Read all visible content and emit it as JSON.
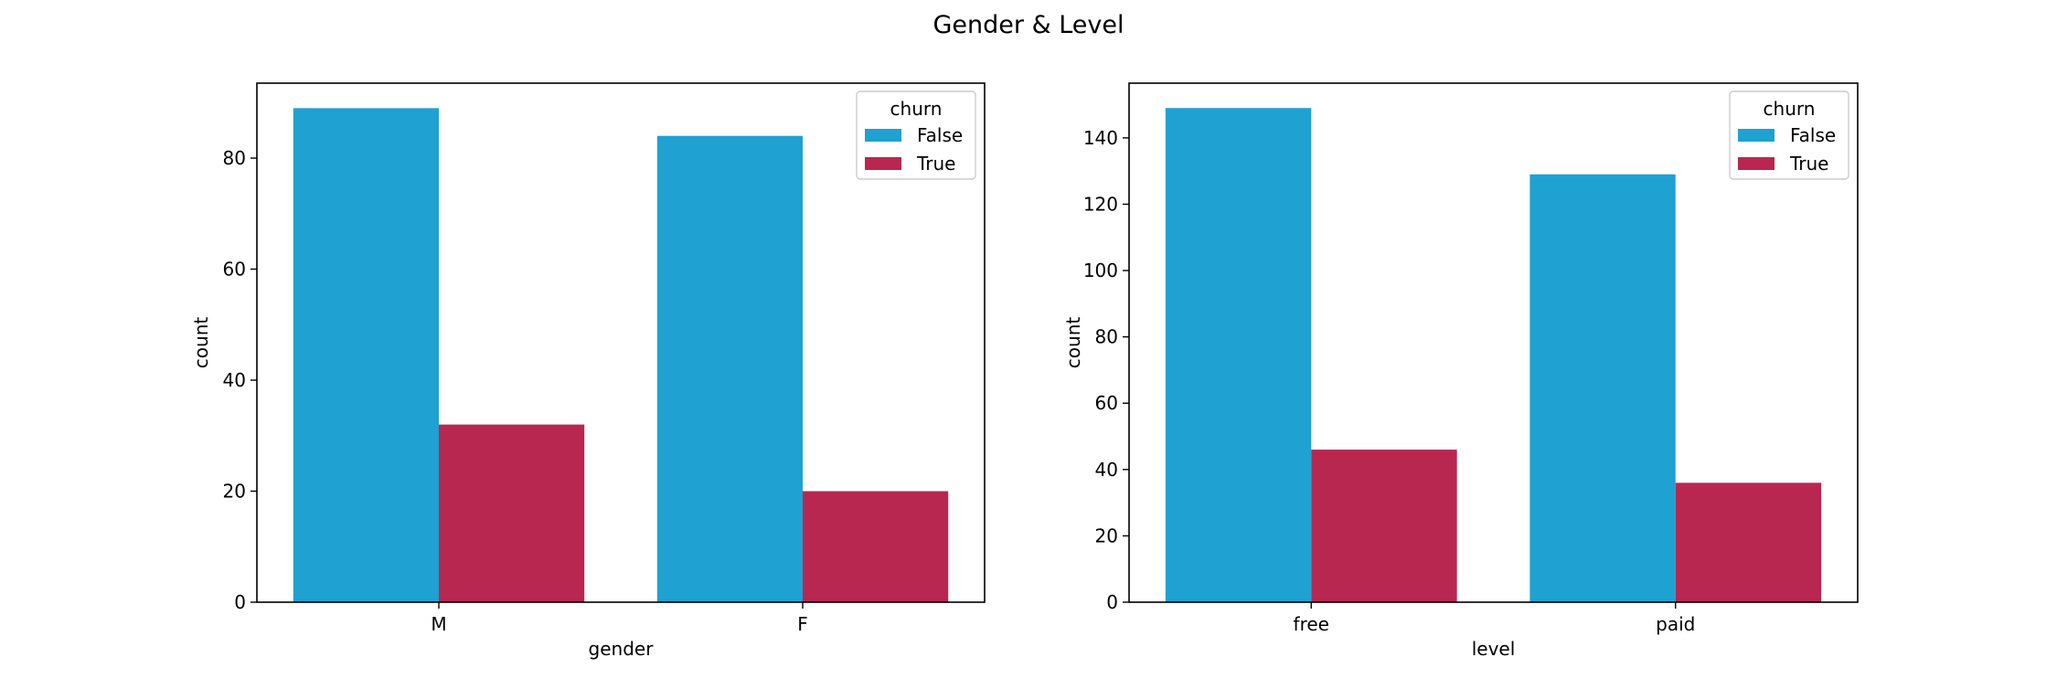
{
  "figure_title": "Gender & Level",
  "colors": {
    "False": "#1fa1d2",
    "True": "#b82750"
  },
  "chart_data": [
    {
      "type": "bar",
      "categories": [
        "M",
        "F"
      ],
      "xlabel": "gender",
      "ylabel": "count",
      "ylim": [
        0,
        93.5
      ],
      "yticks": [
        0,
        20,
        40,
        60,
        80
      ],
      "legend": {
        "title": "churn",
        "position": "top-right"
      },
      "series": [
        {
          "name": "False",
          "values": [
            89,
            84
          ]
        },
        {
          "name": "True",
          "values": [
            32,
            20
          ]
        }
      ]
    },
    {
      "type": "bar",
      "categories": [
        "free",
        "paid"
      ],
      "xlabel": "level",
      "ylabel": "count",
      "ylim": [
        0,
        156.5
      ],
      "yticks": [
        0,
        20,
        40,
        60,
        80,
        100,
        120,
        140
      ],
      "legend": {
        "title": "churn",
        "position": "top-right"
      },
      "series": [
        {
          "name": "False",
          "values": [
            149,
            129
          ]
        },
        {
          "name": "True",
          "values": [
            46,
            36
          ]
        }
      ]
    }
  ]
}
